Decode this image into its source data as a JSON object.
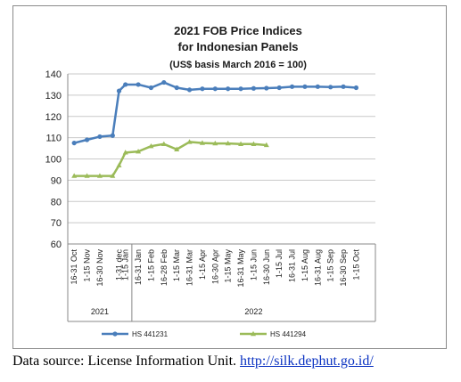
{
  "chart_data": {
    "type": "line",
    "title_lines": [
      "2021 FOB Price Indices",
      "for Indonesian Panels",
      "(US$ basis March 2016 = 100)"
    ],
    "categories": [
      "16-31 Oct",
      "1-15 Nov",
      "16-30 Nov",
      "1-15 Dec",
      "16-31 Dec",
      "1-15 Jan",
      "16-31 Jan",
      "1-15 Feb",
      "16-28 Feb",
      "1-15 Mar",
      "16-31 Mar",
      "1-15 Apr",
      "16-30 Apr",
      "1-15 May",
      "16-31 May",
      "1-15 Jun",
      "16-30 Jun",
      "1-15 Jul",
      "16-31 Jul",
      "1-15 Aug",
      "16-31 Aug",
      "1-15 Sep",
      "16-30 Sep",
      "1-15 Oct"
    ],
    "category_labels": [
      "16-31 Oct",
      "1-15 Nov",
      "16-30 Nov",
      "1-31 dec",
      "1-15 Jan",
      "16-31 Jan",
      "1-15 Feb",
      "16-28 Feb",
      "1-15 Mar",
      "16-31 Mar",
      "1-15 Apr",
      "16-30 Apr",
      "1-15 May",
      "16-31 May",
      "1-15 Jun",
      "16-30 Jun",
      "1-15 Jul",
      "16-31 Jul",
      "1-15 Aug",
      "16-31 Aug",
      "1-15 Sep",
      "16-30 Sep",
      "1-15 Oct"
    ],
    "groups": [
      {
        "label": "2021",
        "count": 4
      },
      {
        "label": "2022",
        "count": 19
      }
    ],
    "ylim": [
      60,
      140
    ],
    "yticks": [
      60,
      70,
      80,
      90,
      100,
      110,
      120,
      130,
      140
    ],
    "grid": true,
    "legend": "bottom",
    "series": [
      {
        "name": "HS 441231",
        "color": "#4a7ebb",
        "points": [
          [
            0,
            107.5
          ],
          [
            1,
            109
          ],
          [
            2,
            110.5
          ],
          [
            3,
            111
          ],
          [
            3.5,
            132
          ],
          [
            4,
            135
          ],
          [
            5,
            135
          ],
          [
            6,
            133.5
          ],
          [
            7,
            136
          ],
          [
            8,
            133.5
          ],
          [
            9,
            132.5
          ],
          [
            10,
            133
          ],
          [
            11,
            133
          ],
          [
            12,
            133
          ],
          [
            13,
            133
          ],
          [
            14,
            133.2
          ],
          [
            15,
            133.3
          ],
          [
            16,
            133.5
          ],
          [
            17,
            134
          ],
          [
            18,
            134
          ],
          [
            19,
            134
          ],
          [
            20,
            133.8
          ],
          [
            21,
            134
          ],
          [
            22,
            133.5
          ]
        ]
      },
      {
        "name": "HS 441294",
        "color": "#9bbb59",
        "points": [
          [
            0,
            92
          ],
          [
            1,
            92
          ],
          [
            2,
            92
          ],
          [
            3,
            92
          ],
          [
            3.5,
            97
          ],
          [
            4,
            103
          ],
          [
            5,
            103.5
          ],
          [
            6,
            106
          ],
          [
            7,
            107
          ],
          [
            8,
            104.5
          ],
          [
            9,
            108
          ],
          [
            10,
            107.5
          ],
          [
            11,
            107.3
          ],
          [
            12,
            107.3
          ],
          [
            13,
            107
          ],
          [
            14,
            107
          ],
          [
            15,
            106.5
          ]
        ]
      }
    ]
  },
  "source": {
    "text": "Data source: License Information Unit. ",
    "link": "http://silk.dephut.go.id/"
  }
}
